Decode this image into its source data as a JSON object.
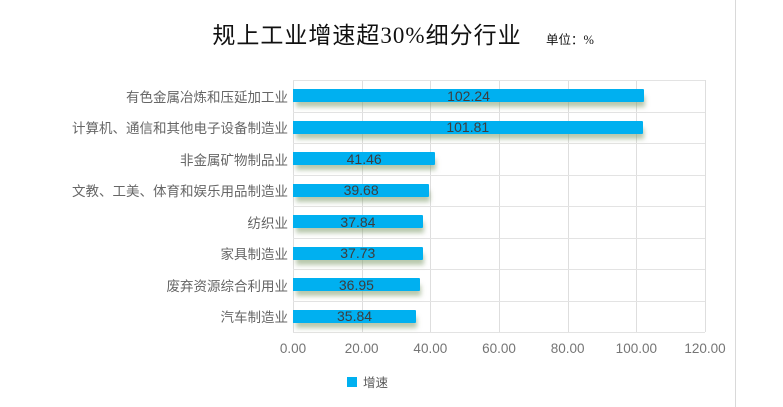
{
  "chart_data": {
    "type": "bar",
    "orientation": "horizontal",
    "title": "规上工业增速超30%细分行业",
    "unit_label": "单位：%",
    "categories": [
      "有色金属冶炼和压延加工业",
      "计算机、通信和其他电子设备制造业",
      "非金属矿物制品业",
      "文教、工美、体育和娱乐用品制造业",
      "纺织业",
      "家具制造业",
      "废弃资源综合利用业",
      "汽车制造业"
    ],
    "series": [
      {
        "name": "增速",
        "values": [
          102.24,
          101.81,
          41.46,
          39.68,
          37.84,
          37.73,
          36.95,
          35.84
        ]
      }
    ],
    "data_labels": [
      "102.24",
      "101.81",
      "41.46",
      "39.68",
      "37.84",
      "37.73",
      "36.95",
      "35.84"
    ],
    "xlim": [
      0,
      120
    ],
    "x_ticks": [
      "0.00",
      "20.00",
      "40.00",
      "60.00",
      "80.00",
      "100.00",
      "120.00"
    ],
    "grid": true,
    "legend_position": "bottom",
    "colors": {
      "bar": "#00b0f0",
      "bar_glow": "rgba(125,155,105,0.55)",
      "gridline": "#dedede",
      "axis_text": "#757575",
      "category_text": "#666666",
      "value_text": "#3d3d3d",
      "title_text": "#111111",
      "page_edge": "#d9d9d9"
    }
  }
}
